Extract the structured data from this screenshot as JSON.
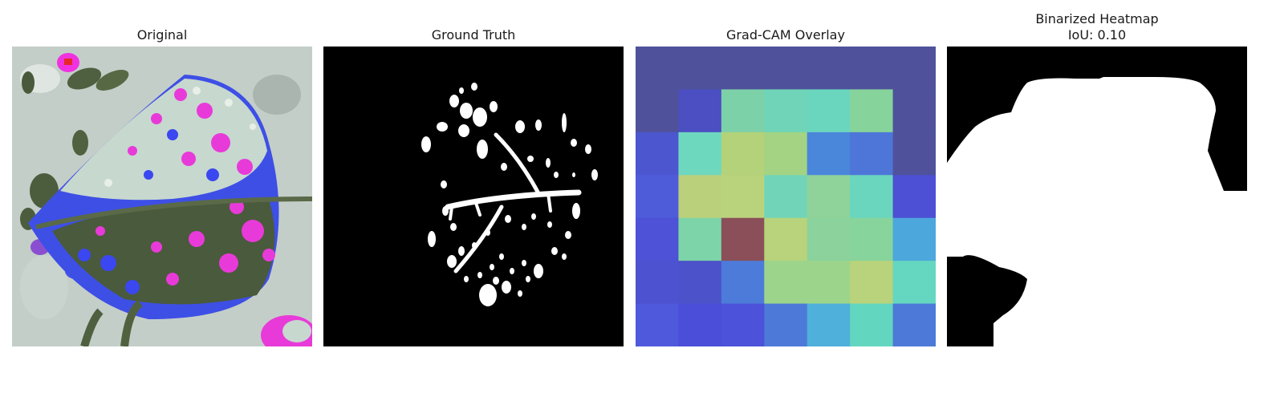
{
  "panels": [
    {
      "title": "Original"
    },
    {
      "title": "Ground Truth"
    },
    {
      "title": "Grad-CAM Overlay"
    },
    {
      "title": "Binarized Heatmap",
      "subtitle": "IoU: 0.10"
    }
  ],
  "gradcam_grid": [
    [
      "#4f529b",
      "#4f529b",
      "#4f529b",
      "#4f529b",
      "#4f529b",
      "#4f529b",
      "#4f529b"
    ],
    [
      "#4f529b",
      "#4b4fc1",
      "#7dd1a8",
      "#6fd4b8",
      "#6ad6be",
      "#86d39b",
      "#4f529b"
    ],
    [
      "#4c56cf",
      "#6ed8bf",
      "#b4d27a",
      "#a3d383",
      "#4a86d9",
      "#4d76d8",
      "#4f529b"
    ],
    [
      "#4e5cda",
      "#bad07a",
      "#b9d37c",
      "#71d4b8",
      "#8fd29a",
      "#6ad6be",
      "#4d4fd4"
    ],
    [
      "#4d52d6",
      "#7dd4a8",
      "#8a4f58",
      "#b8d37b",
      "#8bd29c",
      "#87d49c",
      "#4ca7dc"
    ],
    [
      "#4d53d0",
      "#4c52c9",
      "#4d7bd9",
      "#9cd48c",
      "#9cd48c",
      "#b8d37b",
      "#65d6c0"
    ],
    [
      "#4f59db",
      "#4b4ed8",
      "#4c52da",
      "#4d79d8",
      "#4fb0db",
      "#63d6c0",
      "#4d79d8"
    ]
  ]
}
